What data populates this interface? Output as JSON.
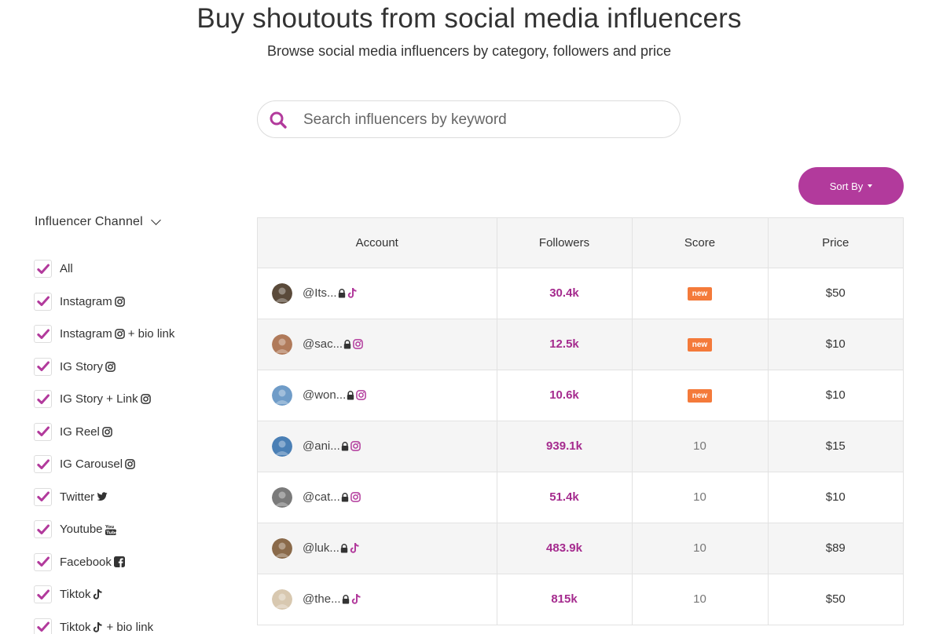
{
  "header": {
    "title": "Buy shoutouts from social media influencers",
    "subtitle": "Browse social media influencers by category, followers and price"
  },
  "search": {
    "placeholder": "Search influencers by keyword",
    "value": ""
  },
  "sort": {
    "label": "Sort By"
  },
  "filters": {
    "heading": "Influencer Channel",
    "items": [
      {
        "label": "All",
        "icon": "",
        "suffix": "",
        "checked": true
      },
      {
        "label": "Instagram",
        "icon": "instagram-icon",
        "suffix": "",
        "checked": true
      },
      {
        "label": "Instagram",
        "icon": "instagram-icon",
        "suffix": "+ bio link",
        "checked": true
      },
      {
        "label": "IG Story",
        "icon": "instagram-icon",
        "suffix": "",
        "checked": true
      },
      {
        "label": "IG Story + Link",
        "icon": "instagram-icon",
        "suffix": "",
        "checked": true
      },
      {
        "label": "IG Reel",
        "icon": "instagram-icon",
        "suffix": "",
        "checked": true
      },
      {
        "label": "IG Carousel",
        "icon": "instagram-icon",
        "suffix": "",
        "checked": true
      },
      {
        "label": "Twitter",
        "icon": "twitter-icon",
        "suffix": "",
        "checked": true
      },
      {
        "label": "Youtube",
        "icon": "youtube-icon",
        "suffix": "",
        "checked": true
      },
      {
        "label": "Facebook",
        "icon": "facebook-icon",
        "suffix": "",
        "checked": true
      },
      {
        "label": "Tiktok",
        "icon": "tiktok-icon",
        "suffix": "",
        "checked": true
      },
      {
        "label": "Tiktok",
        "icon": "tiktok-icon",
        "suffix": "+ bio link",
        "checked": true
      }
    ]
  },
  "table": {
    "columns": [
      "Account",
      "Followers",
      "Score",
      "Price"
    ],
    "rows": [
      {
        "handle": "@Its...",
        "platform": "tiktok-icon",
        "followers": "30.4k",
        "score": "new",
        "price": "$50",
        "avatar_color": "#5a4a3a"
      },
      {
        "handle": "@sac...",
        "platform": "instagram-icon",
        "followers": "12.5k",
        "score": "new",
        "price": "$10",
        "avatar_color": "#b07a5a"
      },
      {
        "handle": "@won...",
        "platform": "instagram-icon",
        "followers": "10.6k",
        "score": "new",
        "price": "$10",
        "avatar_color": "#6f9cc8"
      },
      {
        "handle": "@ani...",
        "platform": "instagram-icon",
        "followers": "939.1k",
        "score": "10",
        "price": "$15",
        "avatar_color": "#4a7fb5"
      },
      {
        "handle": "@cat...",
        "platform": "instagram-icon",
        "followers": "51.4k",
        "score": "10",
        "price": "$10",
        "avatar_color": "#7a7a7a"
      },
      {
        "handle": "@luk...",
        "platform": "tiktok-icon",
        "followers": "483.9k",
        "score": "10",
        "price": "$89",
        "avatar_color": "#8a6a4a"
      },
      {
        "handle": "@the...",
        "platform": "tiktok-icon",
        "followers": "815k",
        "score": "10",
        "price": "$50",
        "avatar_color": "#d8c8b0"
      }
    ]
  },
  "colors": {
    "accent": "#b23a9c",
    "followers": "#a52b8e",
    "new_badge": "#f47a3a"
  }
}
